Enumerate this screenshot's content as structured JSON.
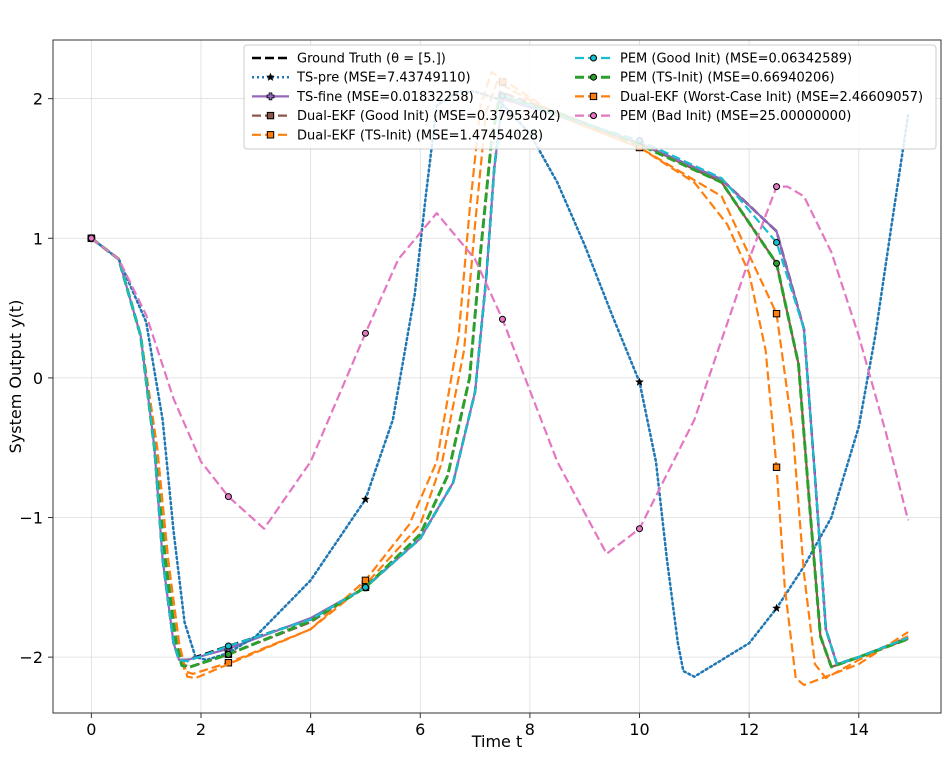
{
  "chart_data": {
    "type": "line",
    "xlabel": "Time t",
    "ylabel": "System Output y(t)",
    "xlim": [
      -0.7,
      15.5
    ],
    "ylim": [
      -2.4,
      2.42
    ],
    "xticks": [
      0,
      2,
      4,
      6,
      8,
      10,
      12,
      14
    ],
    "yticks": [
      -2,
      -1,
      0,
      1,
      2
    ],
    "xtick_labels": [
      "0",
      "2",
      "4",
      "6",
      "8",
      "10",
      "12",
      "14"
    ],
    "ytick_labels": [
      "−2",
      "−1",
      "0",
      "1",
      "2"
    ],
    "grid": true,
    "legend_position": "top-right",
    "colors": {
      "ground_truth": "#000000",
      "ts_pre": "#1f77b4",
      "ts_fine": "#9467bd",
      "dual_good": "#8c564b",
      "dual_ts": "#ff7f0e",
      "pem_good": "#17becf",
      "pem_ts": "#2ca02c",
      "dual_worst": "#ff7f0e",
      "pem_bad": "#e377c2"
    },
    "series": [
      {
        "name": "Ground Truth (θ = [5.])",
        "color": "#000000",
        "style": "dashed",
        "width": 2.5,
        "marker": "none",
        "x": [
          0,
          0.5,
          0.9,
          1.15,
          1.3,
          1.5,
          1.6,
          1.75,
          2.5,
          4,
          5,
          6,
          6.6,
          7,
          7.2,
          7.35,
          7.5,
          8.5,
          10,
          11.5,
          12.5,
          13,
          13.2,
          13.4,
          13.6,
          14,
          14.9
        ],
        "y": [
          1,
          0.85,
          0.3,
          -0.5,
          -1.3,
          -1.9,
          -2.02,
          -2.02,
          -1.92,
          -1.73,
          -1.5,
          -1.15,
          -0.75,
          -0.1,
          0.7,
          1.5,
          2.0,
          1.88,
          1.68,
          1.42,
          1.05,
          0.35,
          -0.7,
          -1.8,
          -2.05,
          -2.0,
          -1.86
        ],
        "markers_at": []
      },
      {
        "name": "TS-pre (MSE=7.43749110)",
        "color": "#1f77b4",
        "style": "dotted",
        "width": 2.5,
        "marker": "star",
        "x": [
          0,
          0.5,
          1.0,
          1.3,
          1.5,
          1.7,
          1.9,
          2.1,
          2.5,
          3.0,
          4.0,
          5.0,
          5.5,
          5.9,
          6.1,
          6.3,
          6.7,
          7.0,
          7.4,
          8.0,
          8.5,
          9.0,
          9.5,
          10.0,
          10.3,
          10.5,
          10.7,
          10.8,
          11.0,
          12.0,
          12.5,
          13.0,
          13.5,
          14.0,
          14.3,
          14.6,
          14.9
        ],
        "y": [
          1,
          0.85,
          0.4,
          -0.3,
          -1.1,
          -1.75,
          -2.0,
          -2.02,
          -1.97,
          -1.85,
          -1.45,
          -0.87,
          -0.3,
          0.6,
          1.3,
          1.95,
          2.05,
          2.05,
          2.0,
          1.75,
          1.4,
          0.95,
          0.45,
          -0.03,
          -0.6,
          -1.3,
          -1.9,
          -2.1,
          -2.14,
          -1.9,
          -1.65,
          -1.35,
          -1.0,
          -0.35,
          0.3,
          1.1,
          1.88
        ],
        "markers_at": [
          [
            5.0,
            -0.87
          ],
          [
            10.0,
            -0.03
          ],
          [
            12.5,
            -1.65
          ]
        ]
      },
      {
        "name": "TS-fine (MSE=0.01832258)",
        "color": "#9467bd",
        "style": "solid",
        "width": 2.2,
        "marker": "plus",
        "x": [
          0,
          0.5,
          0.9,
          1.15,
          1.3,
          1.5,
          1.6,
          1.75,
          2.5,
          4,
          5,
          6,
          6.6,
          7,
          7.2,
          7.35,
          7.5,
          8.5,
          10,
          11.5,
          12.5,
          13,
          13.2,
          13.4,
          13.6,
          14,
          14.9
        ],
        "y": [
          1,
          0.85,
          0.3,
          -0.5,
          -1.3,
          -1.9,
          -2.02,
          -2.02,
          -1.94,
          -1.72,
          -1.5,
          -1.15,
          -0.75,
          -0.1,
          0.7,
          1.5,
          2.0,
          1.88,
          1.68,
          1.42,
          1.05,
          0.35,
          -0.7,
          -1.8,
          -2.05,
          -2.0,
          -1.86
        ],
        "markers_at": [
          [
            0,
            1
          ],
          [
            2.5,
            -1.94
          ],
          [
            5.0,
            -1.5
          ]
        ]
      },
      {
        "name": "Dual-EKF (Good Init) (MSE=0.37953402)",
        "color": "#8c564b",
        "style": "dashed",
        "width": 2.2,
        "marker": "square",
        "x": [
          0,
          0.5,
          0.9,
          1.15,
          1.35,
          1.55,
          1.65,
          1.8,
          2.5,
          4,
          5,
          6,
          6.5,
          6.9,
          7.1,
          7.3,
          7.45,
          8.5,
          10,
          11.5,
          12.5,
          12.9,
          13.1,
          13.3,
          13.5,
          14,
          14.9
        ],
        "y": [
          1,
          0.85,
          0.3,
          -0.5,
          -1.3,
          -1.9,
          -2.05,
          -2.07,
          -1.98,
          -1.75,
          -1.5,
          -1.12,
          -0.7,
          0.0,
          0.9,
          1.7,
          2.05,
          1.9,
          1.68,
          1.4,
          0.82,
          0.1,
          -0.9,
          -1.85,
          -2.07,
          -2.0,
          -1.87
        ],
        "markers_at": [
          [
            0,
            1
          ],
          [
            2.5,
            -1.98
          ],
          [
            5.0,
            -1.5
          ]
        ]
      },
      {
        "name": "Dual-EKF (TS-Init) (MSE=1.47454028)",
        "color": "#ff7f0e",
        "style": "dashed",
        "width": 2.2,
        "marker": "square",
        "x": [
          0,
          0.5,
          0.9,
          1.2,
          1.4,
          1.6,
          1.7,
          1.85,
          2.5,
          4,
          5,
          6,
          6.4,
          6.8,
          7.0,
          7.2,
          7.4,
          8.5,
          10,
          11.5,
          12.5,
          12.8,
          13.0,
          13.2,
          13.4,
          14,
          14.9
        ],
        "y": [
          1,
          0.85,
          0.3,
          -0.5,
          -1.3,
          -1.9,
          -2.1,
          -2.12,
          -2.04,
          -1.8,
          -1.48,
          -1.05,
          -0.6,
          0.2,
          1.1,
          1.9,
          2.12,
          1.88,
          1.65,
          1.3,
          0.46,
          -0.4,
          -1.4,
          -2.05,
          -2.15,
          -2.02,
          -1.85
        ],
        "markers_at": [
          [
            0,
            1
          ],
          [
            2.5,
            -2.04
          ],
          [
            5.0,
            -1.48
          ],
          [
            7.5,
            2.12
          ],
          [
            12.5,
            0.46
          ]
        ]
      },
      {
        "name": "PEM (Good Init) (MSE=0.06342589)",
        "color": "#17becf",
        "style": "dashed",
        "width": 2.2,
        "marker": "circle",
        "x": [
          0,
          0.5,
          0.9,
          1.15,
          1.3,
          1.5,
          1.6,
          1.75,
          2.5,
          4,
          5,
          6,
          6.6,
          7,
          7.2,
          7.35,
          7.5,
          8.5,
          10,
          11.5,
          12.5,
          13,
          13.2,
          13.4,
          13.6,
          14,
          14.9
        ],
        "y": [
          1,
          0.85,
          0.3,
          -0.5,
          -1.3,
          -1.9,
          -2.02,
          -2.03,
          -1.92,
          -1.73,
          -1.5,
          -1.15,
          -0.75,
          -0.1,
          0.7,
          1.5,
          2.02,
          1.88,
          1.7,
          1.43,
          0.97,
          0.35,
          -0.7,
          -1.8,
          -2.05,
          -2.0,
          -1.86
        ],
        "markers_at": [
          [
            0,
            1
          ],
          [
            2.5,
            -1.92
          ],
          [
            5.0,
            -1.5
          ],
          [
            7.5,
            2.02
          ],
          [
            10.0,
            1.7
          ],
          [
            12.5,
            0.97
          ]
        ]
      },
      {
        "name": "PEM (TS-Init) (MSE=0.66940206)",
        "color": "#2ca02c",
        "style": "dashed",
        "width": 3,
        "marker": "circle",
        "x": [
          0,
          0.5,
          0.9,
          1.15,
          1.35,
          1.55,
          1.65,
          1.8,
          2.5,
          4,
          5,
          6,
          6.5,
          6.9,
          7.1,
          7.3,
          7.45,
          8.5,
          10,
          11.5,
          12.5,
          12.9,
          13.1,
          13.3,
          13.5,
          14,
          14.9
        ],
        "y": [
          1,
          0.85,
          0.3,
          -0.5,
          -1.3,
          -1.9,
          -2.06,
          -2.07,
          -1.98,
          -1.74,
          -1.5,
          -1.12,
          -0.7,
          0.0,
          0.9,
          1.7,
          2.02,
          1.9,
          1.67,
          1.4,
          0.82,
          0.1,
          -0.9,
          -1.85,
          -2.07,
          -2.0,
          -1.87
        ],
        "markers_at": [
          [
            0,
            1
          ],
          [
            2.5,
            -1.98
          ],
          [
            5.0,
            -1.5
          ],
          [
            12.5,
            0.82
          ]
        ]
      },
      {
        "name": "Dual-EKF (Worst-Case Init) (MSE=2.46609057)",
        "color": "#ff7f0e",
        "style": "dashed",
        "width": 2.2,
        "marker": "square",
        "x": [
          0,
          0.5,
          0.9,
          1.2,
          1.4,
          1.6,
          1.75,
          1.9,
          2.5,
          4,
          5,
          5.8,
          6.3,
          6.7,
          6.9,
          7.1,
          7.3,
          8.5,
          10,
          11,
          11.6,
          12.0,
          12.3,
          12.5,
          12.65,
          12.85,
          13.0,
          14,
          14.9
        ],
        "y": [
          1,
          0.85,
          0.3,
          -0.5,
          -1.3,
          -1.9,
          -2.14,
          -2.15,
          -2.05,
          -1.8,
          -1.45,
          -1.05,
          -0.6,
          0.3,
          1.2,
          1.95,
          2.19,
          1.88,
          1.65,
          1.4,
          1.1,
          0.75,
          0.2,
          -0.64,
          -1.5,
          -2.15,
          -2.2,
          -2.05,
          -1.82
        ],
        "markers_at": [
          [
            5.0,
            -1.45
          ],
          [
            10.0,
            1.65
          ],
          [
            12.5,
            -0.64
          ]
        ]
      },
      {
        "name": "PEM (Bad Init) (MSE=25.00000000)",
        "color": "#e377c2",
        "style": "dashed",
        "width": 2.2,
        "marker": "circle",
        "x": [
          0,
          0.5,
          1.0,
          1.5,
          2.0,
          2.5,
          3.15,
          4.0,
          5.0,
          5.6,
          6.3,
          7.0,
          7.5,
          8.5,
          9.4,
          10.0,
          11.0,
          12.0,
          12.5,
          12.7,
          13.0,
          13.5,
          14.0,
          14.5,
          14.9
        ],
        "y": [
          1,
          0.85,
          0.45,
          -0.15,
          -0.6,
          -0.85,
          -1.08,
          -0.6,
          0.32,
          0.85,
          1.18,
          0.85,
          0.42,
          -0.6,
          -1.26,
          -1.08,
          -0.3,
          0.85,
          1.37,
          1.37,
          1.3,
          0.9,
          0.3,
          -0.4,
          -1.02
        ],
        "markers_at": [
          [
            0,
            1
          ],
          [
            2.5,
            -0.85
          ],
          [
            5.0,
            0.32
          ],
          [
            7.5,
            0.42
          ],
          [
            10.0,
            -1.08
          ],
          [
            12.5,
            1.37
          ]
        ]
      }
    ],
    "legend": {
      "columns": 2,
      "entries": [
        {
          "label": "Ground Truth (θ = [5.])",
          "series": 0
        },
        {
          "label": "TS-pre (MSE=7.43749110)",
          "series": 1
        },
        {
          "label": "TS-fine (MSE=0.01832258)",
          "series": 2
        },
        {
          "label": "Dual-EKF (Good Init) (MSE=0.37953402)",
          "series": 3
        },
        {
          "label": "Dual-EKF (TS-Init) (MSE=1.47454028)",
          "series": 4
        },
        {
          "label": "PEM (Good Init) (MSE=0.06342589)",
          "series": 5
        },
        {
          "label": "PEM (TS-Init) (MSE=0.66940206)",
          "series": 6
        },
        {
          "label": "Dual-EKF (Worst-Case Init) (MSE=2.46609057)",
          "series": 7
        },
        {
          "label": "PEM (Bad Init) (MSE=25.00000000)",
          "series": 8
        }
      ]
    }
  }
}
